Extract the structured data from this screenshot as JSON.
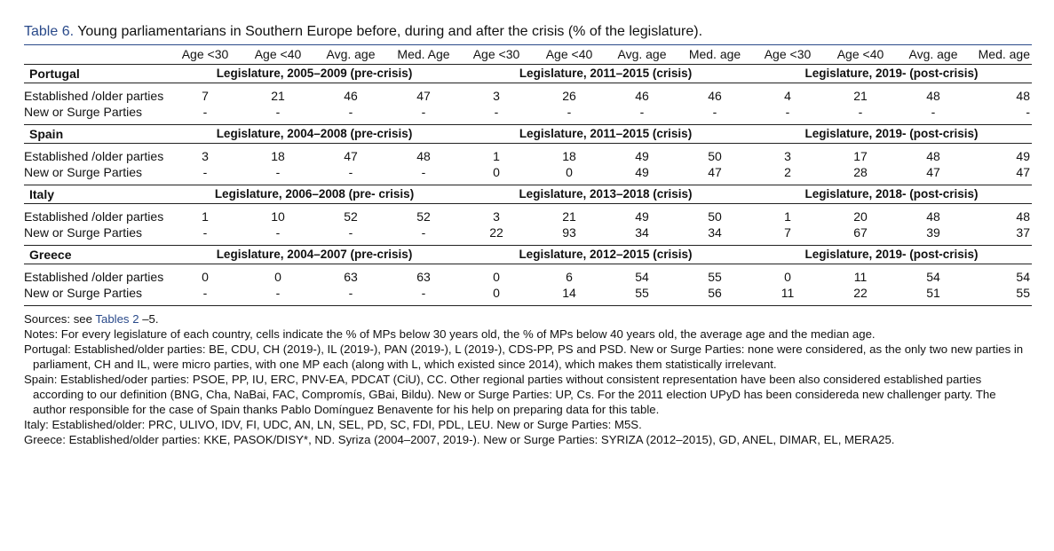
{
  "caption": {
    "label": "Table 6.",
    "text": " Young parliamentarians in Southern Europe before, during and after the crisis (% of the legislature)."
  },
  "columns": [
    "Age <30",
    "Age <40",
    "Avg. age",
    "Med. Age",
    "Age <30",
    "Age <40",
    "Avg. age",
    "Med. age",
    "Age <30",
    "Age <40",
    "Avg. age",
    "Med. age"
  ],
  "countries": [
    {
      "name": "Portugal",
      "legislatures": [
        "Legislature, 2005–2009 (pre-crisis)",
        "Legislature, 2011–2015 (crisis)",
        "Legislature, 2019- (post-crisis)"
      ],
      "rows": [
        {
          "label": "Established /older parties",
          "values": [
            "7",
            "21",
            "46",
            "47",
            "3",
            "26",
            "46",
            "46",
            "4",
            "21",
            "48",
            "48"
          ]
        },
        {
          "label": "New or Surge Parties",
          "values": [
            "-",
            "-",
            "-",
            "-",
            "-",
            "-",
            "-",
            "-",
            "-",
            "-",
            "-",
            "-"
          ]
        }
      ]
    },
    {
      "name": "Spain",
      "legislatures": [
        "Legislature, 2004–2008 (pre-crisis)",
        "Legislature, 2011–2015 (crisis)",
        "Legislature, 2019- (post-crisis)"
      ],
      "rows": [
        {
          "label": "Established /older parties",
          "values": [
            "3",
            "18",
            "47",
            "48",
            "1",
            "18",
            "49",
            "50",
            "3",
            "17",
            "48",
            "49"
          ]
        },
        {
          "label": "New or Surge Parties",
          "values": [
            "-",
            "-",
            "-",
            "-",
            "0",
            "0",
            "49",
            "47",
            "2",
            "28",
            "47",
            "47"
          ]
        }
      ]
    },
    {
      "name": "Italy",
      "legislatures": [
        "Legislature, 2006–2008 (pre- crisis)",
        "Legislature, 2013–2018 (crisis)",
        "Legislature, 2018- (post-crisis)"
      ],
      "rows": [
        {
          "label": "Established /older parties",
          "values": [
            "1",
            "10",
            "52",
            "52",
            "3",
            "21",
            "49",
            "50",
            "1",
            "20",
            "48",
            "48"
          ]
        },
        {
          "label": "New or Surge Parties",
          "values": [
            "-",
            "-",
            "-",
            "-",
            "22",
            "93",
            "34",
            "34",
            "7",
            "67",
            "39",
            "37"
          ]
        }
      ]
    },
    {
      "name": "Greece",
      "legislatures": [
        "Legislature, 2004–2007 (pre-crisis)",
        "Legislature, 2012–2015 (crisis)",
        "Legislature, 2019- (post-crisis)"
      ],
      "rows": [
        {
          "label": "Established /older parties",
          "values": [
            "0",
            "0",
            "63",
            "63",
            "0",
            "6",
            "54",
            "55",
            "0",
            "11",
            "54",
            "54"
          ]
        },
        {
          "label": "New or Surge Parties",
          "values": [
            "-",
            "-",
            "-",
            "-",
            "0",
            "14",
            "55",
            "56",
            "11",
            "22",
            "51",
            "55"
          ]
        }
      ]
    }
  ],
  "notes": {
    "sources_prefix": "Sources: see ",
    "sources_link": "Tables 2",
    "sources_suffix": " –5.",
    "lines": [
      "Notes: For every legislature of each country, cells indicate the % of MPs below 30 years old, the % of MPs below 40 years old, the average age and the median age.",
      "Portugal: Established/older parties: BE, CDU, CH (2019-), IL (2019-), PAN (2019-), L (2019-), CDS-PP, PS and PSD. New or Surge Parties: none were considered, as the only two new parties in parliament, CH and IL, were micro parties, with one MP each (along with L, which existed since 2014), which makes them statistically irrelevant.",
      "Spain: Established/oder parties: PSOE, PP, IU, ERC, PNV-EA, PDCAT (CiU), CC. Other regional parties without consistent representation have been also considered established parties according to our definition (BNG, Cha, NaBai, FAC, Compromís, GBai, Bildu). New or Surge Parties: UP, Cs. For the 2011 election UPyD has been considereda new challenger party. The author responsible for the case of Spain thanks Pablo Domínguez Benavente for his help on preparing data for this table.",
      "Italy: Established/older: PRC, ULIVO, IDV, FI, UDC, AN, LN, SEL, PD, SC, FDI, PDL, LEU. New or Surge Parties: M5S.",
      "Greece: Established/older parties: KKE, PASOK/DISY*, ND. Syriza (2004–2007, 2019-). New or Surge Parties: SYRIZA (2012–2015), GD, ANEL, DIMAR, EL, MERA25."
    ]
  }
}
